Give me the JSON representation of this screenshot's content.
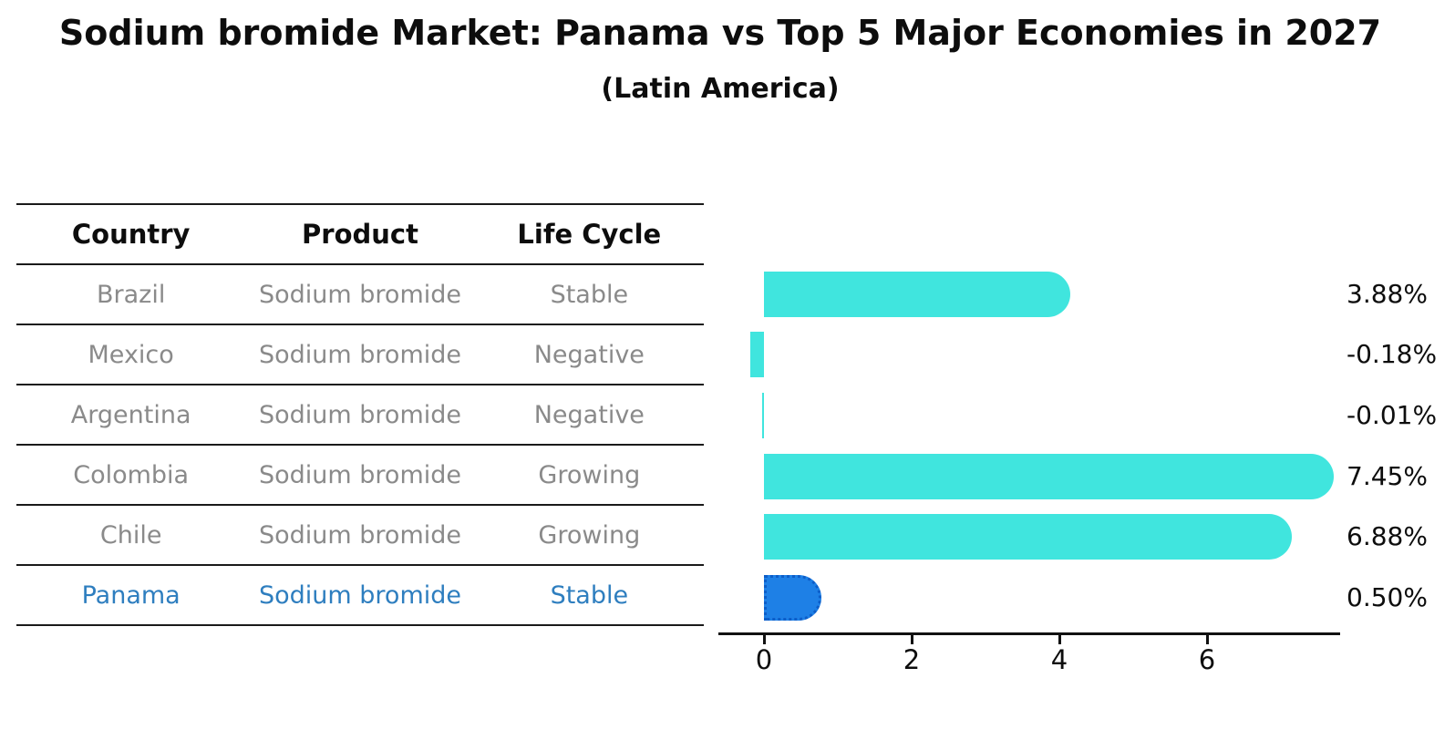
{
  "title": "Sodium bromide Market: Panama vs Top 5 Major Economies in 2027",
  "subtitle": "(Latin America)",
  "table": {
    "headers": [
      "Country",
      "Product",
      "Life Cycle"
    ],
    "rows": [
      {
        "country": "Brazil",
        "product": "Sodium bromide",
        "life_cycle": "Stable",
        "highlight": false
      },
      {
        "country": "Mexico",
        "product": "Sodium bromide",
        "life_cycle": "Negative",
        "highlight": false
      },
      {
        "country": "Argentina",
        "product": "Sodium bromide",
        "life_cycle": "Negative",
        "highlight": false
      },
      {
        "country": "Colombia",
        "product": "Sodium bromide",
        "life_cycle": "Growing",
        "highlight": false
      },
      {
        "country": "Chile",
        "product": "Sodium bromide",
        "life_cycle": "Growing",
        "highlight": false
      },
      {
        "country": "Panama",
        "product": "Sodium bromide",
        "life_cycle": "Stable",
        "highlight": true
      }
    ]
  },
  "colors": {
    "bar": "#40e5de",
    "highlight_bar_fill": "#1e80e6",
    "highlight_bar_border": "#0d5ec9",
    "highlight_text": "#2e7ebf",
    "table_text": "#8a8a8a",
    "text": "#0d0d0d"
  },
  "chart_data": {
    "type": "bar",
    "orientation": "horizontal",
    "title": "Sodium bromide Market: Panama vs Top 5 Major Economies in 2027",
    "subtitle": "(Latin America)",
    "categories": [
      "Brazil",
      "Mexico",
      "Argentina",
      "Colombia",
      "Chile",
      "Panama"
    ],
    "values": [
      3.88,
      -0.18,
      -0.01,
      7.45,
      6.88,
      0.5
    ],
    "value_labels": [
      "3.88%",
      "-0.18%",
      "-0.01%",
      "7.45%",
      "6.88%",
      "0.50%"
    ],
    "unit": "percent",
    "xticks": [
      "0",
      "2",
      "4",
      "6"
    ],
    "xtick_values": [
      0,
      2,
      4,
      6
    ],
    "xlim": [
      -0.6,
      7.8
    ],
    "highlight_index": 5,
    "grid": false,
    "legend": null
  }
}
